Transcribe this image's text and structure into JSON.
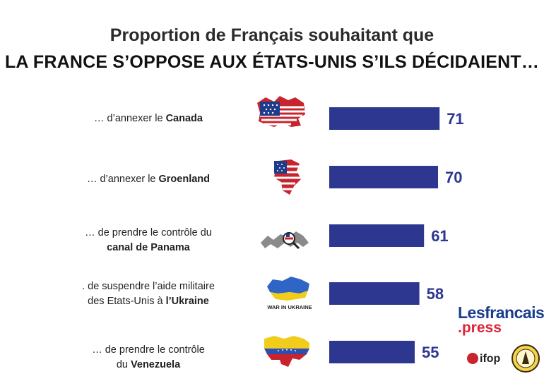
{
  "title_line1": "Proportion de Français souhaitant que",
  "title_line2": "LA FRANCE S’OPPOSE AUX ÉTATS-UNIS S’ILS DÉCIDAIENT…",
  "chart_data": {
    "type": "bar",
    "orientation": "horizontal",
    "categories": [
      "… d’annexer le Canada",
      "… d’annexer le Groenland",
      "… de prendre le contrôle du canal de Panama",
      ". de suspendre l’aide militaire des Etats-Unis à l’Ukraine",
      "… de prendre le contrôle du Venezuela"
    ],
    "values": [
      71,
      70,
      61,
      58,
      55
    ],
    "xlim": [
      0,
      100
    ],
    "grid": false,
    "legend": "none",
    "bar_color": "#2e3790"
  },
  "rows": [
    {
      "pre": "… d’annexer le ",
      "bold": "Canada",
      "line2_pre": "",
      "line2_bold": "",
      "icon": "canada-us-flag-icon",
      "value_label": "71"
    },
    {
      "pre": "… d’annexer le ",
      "bold": "Groenland",
      "line2_pre": "",
      "line2_bold": "",
      "icon": "greenland-us-flag-icon",
      "value_label": "70"
    },
    {
      "pre": "… de prendre le contrôle du",
      "bold": "",
      "line2_pre": "",
      "line2_bold": "canal de Panama",
      "icon": "panama-map-icon",
      "value_label": "61"
    },
    {
      "pre": ". de suspendre l’aide militaire",
      "bold": "",
      "line2_pre": "des Etats-Unis à ",
      "line2_bold": "l’Ukraine",
      "icon": "ukraine-war-icon",
      "value_label": "58"
    },
    {
      "pre": "… de prendre le contrôle",
      "bold": "",
      "line2_pre": "du ",
      "line2_bold": "Venezuela",
      "icon": "venezuela-flag-icon",
      "value_label": "55"
    }
  ],
  "ukraine_icon_text": "WAR IN UKRAINE",
  "brand": {
    "line1": "Lesfrancais",
    "line2": ".press"
  },
  "ifop_logo_text": "ifop"
}
